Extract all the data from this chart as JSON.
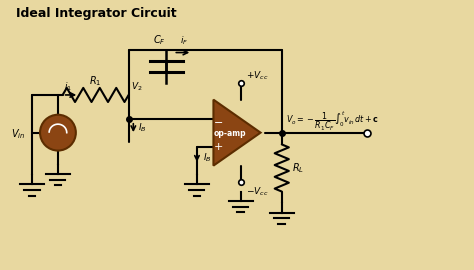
{
  "title": "Ideal Integrator Circuit",
  "bg_color": "#e8d8a0",
  "line_color": "#000000",
  "brown_color": "#8B4513",
  "dark_brown": "#5C2D00",
  "title_color": "#000000",
  "label_color": "#000000",
  "figsize": [
    4.74,
    2.7
  ],
  "dpi": 100
}
